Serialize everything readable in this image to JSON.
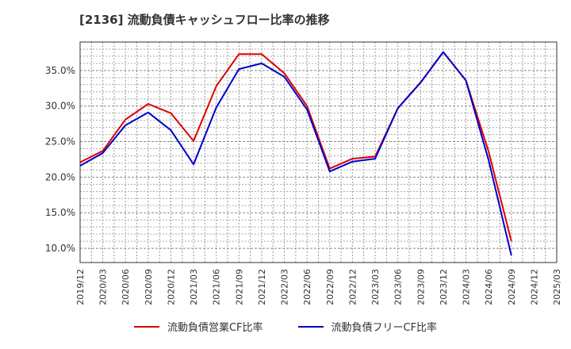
{
  "chart_data": {
    "type": "line",
    "title": "[2136]  流動負債キャッシュフロー比率の推移",
    "xlabel": "",
    "ylabel": "",
    "x": [
      "2019/12",
      "2020/03",
      "2020/06",
      "2020/09",
      "2020/12",
      "2021/03",
      "2021/06",
      "2021/09",
      "2021/12",
      "2022/03",
      "2022/06",
      "2022/09",
      "2022/12",
      "2023/03",
      "2023/06",
      "2023/09",
      "2023/12",
      "2024/03",
      "2024/06",
      "2024/09",
      "2024/12",
      "2025/03"
    ],
    "ylim": [
      8.0,
      39.0
    ],
    "yticks": [
      10.0,
      15.0,
      20.0,
      25.0,
      30.0,
      35.0
    ],
    "ytick_labels": [
      "10.0%",
      "15.0%",
      "20.0%",
      "25.0%",
      "30.0%",
      "35.0%"
    ],
    "grid": true,
    "legend_position": "bottom",
    "series": [
      {
        "name": "流動負債営業CF比率",
        "color": "#dd0000",
        "values": [
          22.1,
          23.7,
          28.1,
          30.3,
          29.0,
          25.1,
          32.8,
          37.3,
          37.3,
          34.6,
          30.0,
          21.2,
          22.6,
          22.9,
          29.7,
          33.3,
          37.6,
          33.6,
          23.6,
          11.0,
          null,
          null
        ]
      },
      {
        "name": "流動負債フリーCF比率",
        "color": "#0000cc",
        "values": [
          21.6,
          23.4,
          27.3,
          29.1,
          26.6,
          21.8,
          29.8,
          35.2,
          36.0,
          34.1,
          29.5,
          20.8,
          22.2,
          22.6,
          29.7,
          33.3,
          37.6,
          33.6,
          22.4,
          9.0,
          null,
          null
        ]
      }
    ]
  }
}
